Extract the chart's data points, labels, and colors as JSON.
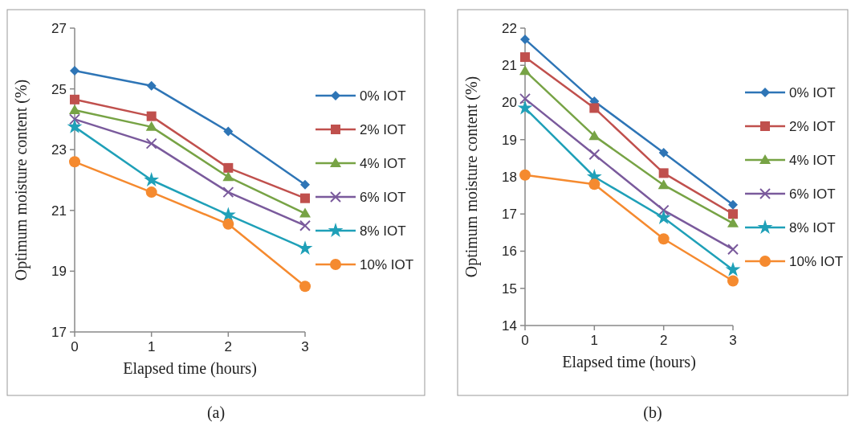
{
  "chart_data": [
    {
      "type": "line",
      "xlabel": "Elapsed time (hours)",
      "ylabel": "Optimum moisture content (%)",
      "x": [
        0,
        1,
        2,
        3
      ],
      "xlim": [
        0,
        3
      ],
      "xticks": [
        0,
        1,
        2,
        3
      ],
      "ylim": [
        17,
        27
      ],
      "yticks": [
        17,
        19,
        21,
        23,
        25,
        27
      ],
      "grid": false,
      "legend": "right",
      "annotations": [
        "(a)"
      ],
      "series": [
        {
          "name": "0% IOT",
          "color": "#2e75b6",
          "marker": "diamond",
          "values": [
            25.6,
            25.1,
            23.6,
            21.85
          ]
        },
        {
          "name": "2% IOT",
          "color": "#c0504d",
          "marker": "square",
          "values": [
            24.65,
            24.1,
            22.4,
            21.4
          ]
        },
        {
          "name": "4% IOT",
          "color": "#77a345",
          "marker": "triangle",
          "values": [
            24.3,
            23.75,
            22.1,
            20.9
          ]
        },
        {
          "name": "6% IOT",
          "color": "#7a5a9c",
          "marker": "cross",
          "values": [
            24.0,
            23.2,
            21.6,
            20.5
          ]
        },
        {
          "name": "8% IOT",
          "color": "#1fa0b8",
          "marker": "star",
          "values": [
            23.75,
            22.0,
            20.85,
            19.75
          ]
        },
        {
          "name": "10% IOT",
          "color": "#f58a2f",
          "marker": "circle",
          "values": [
            22.6,
            21.6,
            20.55,
            18.5
          ]
        }
      ]
    },
    {
      "type": "line",
      "xlabel": "Elapsed time (hours)",
      "ylabel": "Optimum moisture content (%)",
      "x": [
        0,
        1,
        2,
        3
      ],
      "xlim": [
        0,
        3
      ],
      "xticks": [
        0,
        1,
        2,
        3
      ],
      "ylim": [
        14,
        22
      ],
      "yticks": [
        14,
        15,
        16,
        17,
        18,
        19,
        20,
        21,
        22
      ],
      "grid": false,
      "legend": "right",
      "annotations": [
        "(b)"
      ],
      "series": [
        {
          "name": "0% IOT",
          "color": "#2e75b6",
          "marker": "diamond",
          "values": [
            21.7,
            20.03,
            18.65,
            17.25
          ]
        },
        {
          "name": "2% IOT",
          "color": "#c0504d",
          "marker": "square",
          "values": [
            21.22,
            19.85,
            18.1,
            17.0
          ]
        },
        {
          "name": "4% IOT",
          "color": "#77a345",
          "marker": "triangle",
          "values": [
            20.85,
            19.1,
            17.78,
            16.75
          ]
        },
        {
          "name": "6% IOT",
          "color": "#7a5a9c",
          "marker": "cross",
          "values": [
            20.1,
            18.6,
            17.1,
            16.05
          ]
        },
        {
          "name": "8% IOT",
          "color": "#1fa0b8",
          "marker": "star",
          "values": [
            19.85,
            18.0,
            16.9,
            15.5
          ]
        },
        {
          "name": "10% IOT",
          "color": "#f58a2f",
          "marker": "circle",
          "values": [
            18.05,
            17.8,
            16.33,
            15.2
          ]
        }
      ]
    }
  ]
}
